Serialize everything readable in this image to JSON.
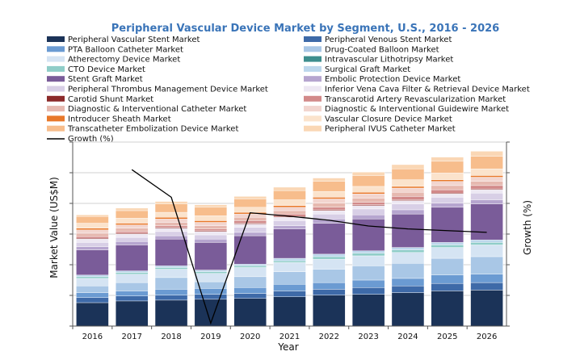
{
  "chart_data": {
    "type": "bar",
    "stacked": true,
    "title": "Peripheral Vascular Device Market by Segment, U.S., 2016 - 2026",
    "xlabel": "Year",
    "ylabel": "Market Value (US$M)",
    "y2label": "Growth (%)",
    "categories": [
      "2016",
      "2017",
      "2018",
      "2019",
      "2020",
      "2021",
      "2022",
      "2023",
      "2024",
      "2025",
      "2026"
    ],
    "ylim": [
      0,
      220
    ],
    "y2lim": [
      -12,
      20
    ],
    "grid": true,
    "legend_position": "top",
    "series": [
      {
        "name": "Peripheral Vascular Stent Market",
        "color": "#1b3358",
        "values": [
          28,
          30,
          31,
          32,
          33,
          35,
          37,
          38,
          40,
          42,
          43
        ]
      },
      {
        "name": "Peripheral Venous Stent Market",
        "color": "#3e6aa8",
        "values": [
          6,
          6,
          6,
          6,
          6,
          7,
          7,
          8,
          8,
          9,
          9
        ]
      },
      {
        "name": "PTA Balloon Catheter Market",
        "color": "#6b9bd2",
        "values": [
          6,
          6,
          7,
          7,
          7,
          8,
          8,
          9,
          9,
          10,
          10
        ]
      },
      {
        "name": "Drug-Coated Balloon Market",
        "color": "#a9c7e6",
        "values": [
          8,
          10,
          14,
          8,
          13,
          15,
          16,
          17,
          18,
          20,
          21
        ]
      },
      {
        "name": "Atherectomy Device Market",
        "color": "#d5e4f3",
        "values": [
          9,
          10,
          10,
          10,
          11,
          11,
          12,
          12,
          13,
          13,
          14
        ]
      },
      {
        "name": "Intravascular Lithotripsy Market",
        "color": "#3d8e8e",
        "values": [
          0,
          0,
          0,
          0,
          0,
          0,
          0,
          0,
          0,
          0,
          0
        ]
      },
      {
        "name": "CTO Device Market",
        "color": "#8fcdc8",
        "values": [
          2,
          2,
          2,
          2,
          2,
          2,
          3,
          3,
          3,
          3,
          3
        ]
      },
      {
        "name": "Surgical Graft Market",
        "color": "#bcd7ec",
        "values": [
          2,
          2,
          2,
          2,
          2,
          3,
          3,
          3,
          3,
          3,
          3
        ]
      },
      {
        "name": "Stent Graft Market",
        "color": "#7a5c99",
        "values": [
          30,
          31,
          32,
          33,
          34,
          35,
          37,
          38,
          40,
          42,
          43
        ]
      },
      {
        "name": "Embolic Protection Device Market",
        "color": "#b6a5cf",
        "values": [
          4,
          4,
          4,
          4,
          4,
          4,
          5,
          5,
          5,
          5,
          5
        ]
      },
      {
        "name": "Peripheral Thrombus Management Device Market",
        "color": "#d8cfe6",
        "values": [
          5,
          5,
          5,
          5,
          6,
          6,
          6,
          7,
          7,
          7,
          8
        ]
      },
      {
        "name": "Inferior Vena Cava Filter & Retrieval Device Market",
        "color": "#ede8f3",
        "values": [
          4,
          4,
          4,
          4,
          4,
          4,
          4,
          4,
          4,
          4,
          4
        ]
      },
      {
        "name": "Carotid Shunt Market",
        "color": "#8c2a2a",
        "values": [
          1,
          1,
          1,
          1,
          1,
          1,
          1,
          1,
          1,
          1,
          1
        ]
      },
      {
        "name": "Transcarotid Artery Revascularization Market",
        "color": "#d28a8a",
        "values": [
          2,
          2,
          2,
          2,
          3,
          3,
          3,
          3,
          4,
          4,
          4
        ]
      },
      {
        "name": "Diagnostic & Interventional Catheter Market",
        "color": "#e6b9b0",
        "values": [
          4,
          4,
          4,
          4,
          4,
          4,
          5,
          5,
          5,
          5,
          5
        ]
      },
      {
        "name": "Diagnostic & Interventional Guidewire Market",
        "color": "#f2d5cf",
        "values": [
          4,
          4,
          4,
          4,
          4,
          4,
          5,
          5,
          5,
          5,
          5
        ]
      },
      {
        "name": "Introducer Sheath Market",
        "color": "#e8782a",
        "values": [
          2,
          2,
          2,
          2,
          2,
          2,
          2,
          2,
          2,
          2,
          2
        ]
      },
      {
        "name": "Vascular Closure Device Market",
        "color": "#fbe3cc",
        "values": [
          6,
          6,
          6,
          6,
          6,
          7,
          7,
          7,
          8,
          8,
          8
        ]
      },
      {
        "name": "Transcatheter Embolization Device Market",
        "color": "#f7bd8c",
        "values": [
          8,
          9,
          10,
          10,
          10,
          11,
          12,
          13,
          13,
          14,
          15
        ]
      },
      {
        "name": "Peripheral IVUS Catheter Market",
        "color": "#fad7b5",
        "values": [
          2,
          3,
          3,
          3,
          3,
          4,
          4,
          4,
          5,
          5,
          6
        ]
      }
    ],
    "line_series": {
      "name": "Growth (%)",
      "color": "#000000",
      "values": [
        null,
        15.2,
        10.4,
        -11.5,
        7.7,
        7.1,
        6.4,
        5.4,
        4.9,
        4.6,
        4.3
      ]
    }
  }
}
